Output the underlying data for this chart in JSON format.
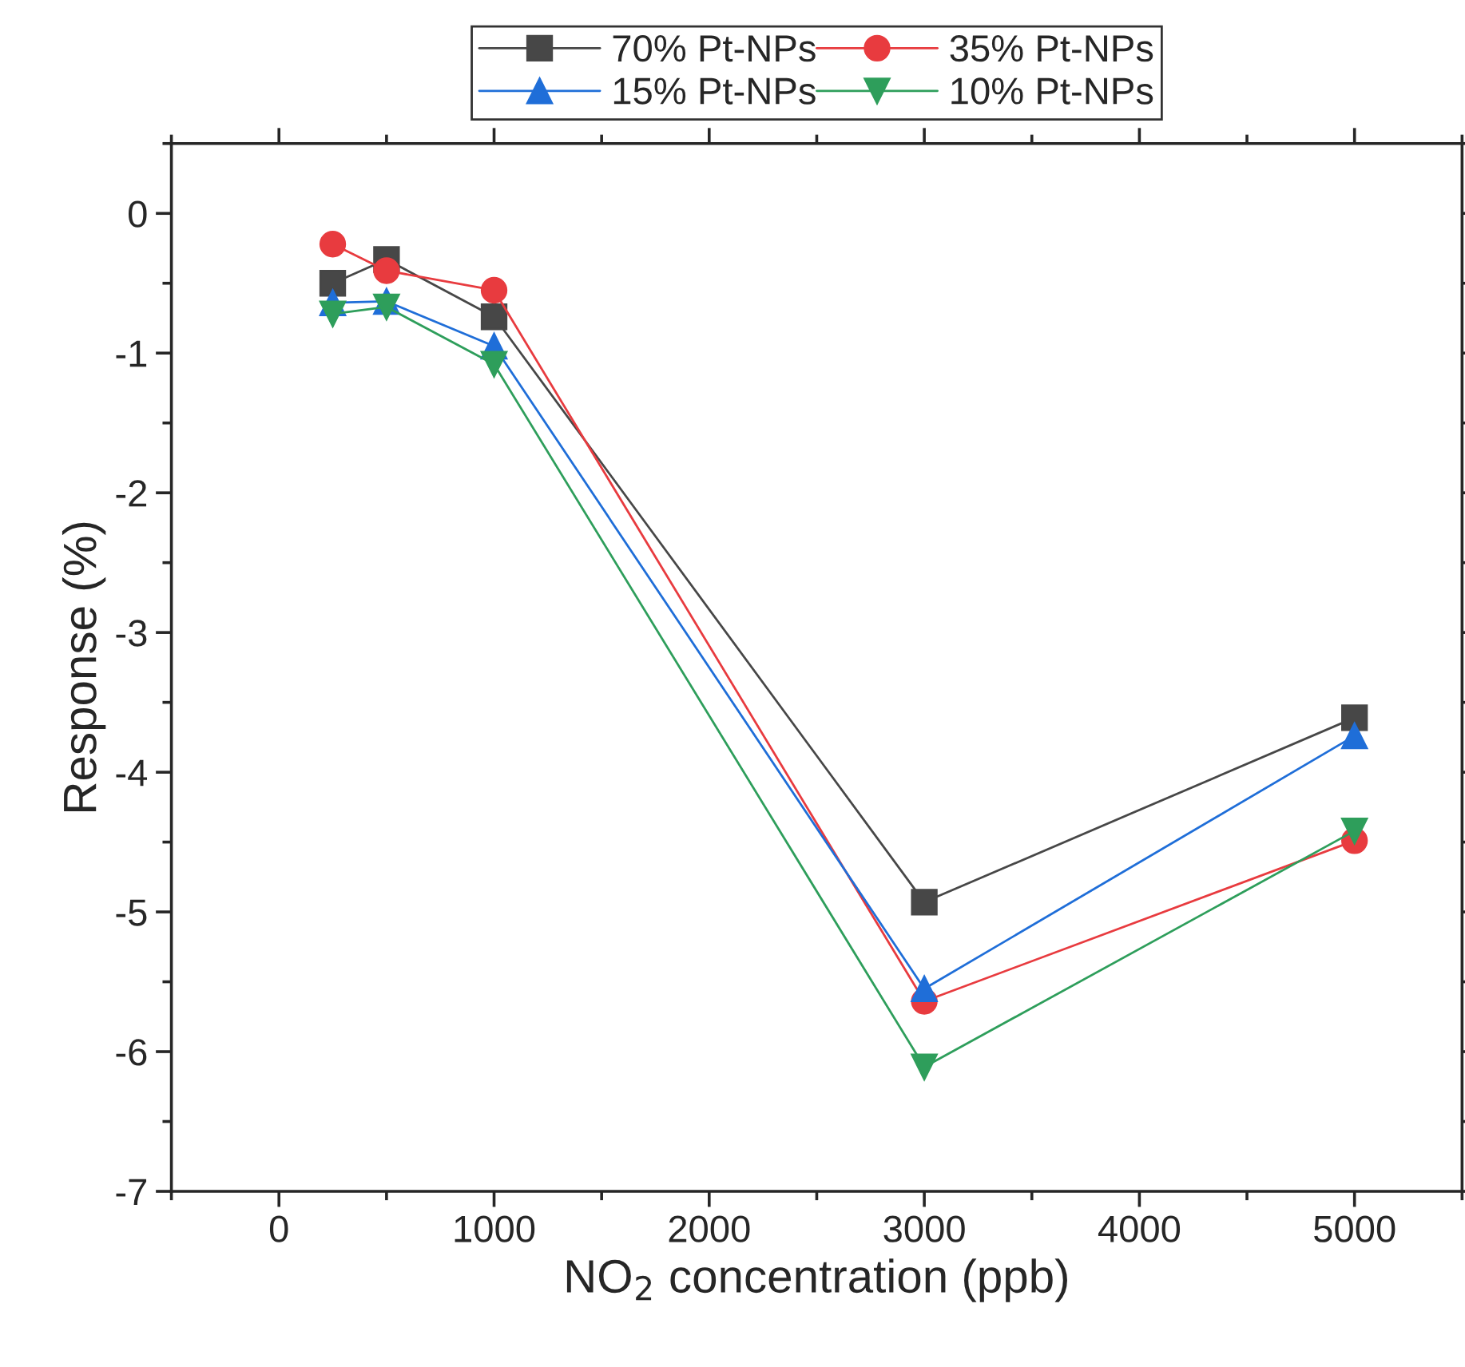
{
  "chart_data": {
    "type": "line",
    "xlabel": "NO$_{2}$ concentration (ppb)",
    "ylabel": "Response (%)",
    "x": [
      250,
      500,
      1000,
      3000,
      5000
    ],
    "series": [
      {
        "name": "70% Pt-NPs",
        "color": "#474747",
        "marker": "square",
        "values": [
          -0.5,
          -0.33,
          -0.74,
          -4.93,
          -3.61
        ]
      },
      {
        "name": "35% Pt-NPs",
        "color": "#e83b3f",
        "marker": "circle",
        "values": [
          -0.22,
          -0.41,
          -0.55,
          -5.64,
          -4.49
        ]
      },
      {
        "name": "15% Pt-NPs",
        "color": "#1f6ed8",
        "marker": "triangle",
        "values": [
          -0.64,
          -0.63,
          -0.95,
          -5.55,
          -3.74
        ]
      },
      {
        "name": "10% Pt-NPs",
        "color": "#2e9e5b",
        "marker": "triangle_down",
        "values": [
          -0.72,
          -0.67,
          -1.08,
          -6.11,
          -4.42
        ]
      }
    ],
    "xlim": [
      -500,
      5500
    ],
    "xticks": [
      0,
      1000,
      2000,
      3000,
      4000,
      5000
    ],
    "ylim": [
      -7,
      0.5
    ],
    "yticks": [
      -7,
      -6,
      -5,
      -4,
      -3,
      -2,
      -1,
      0
    ],
    "grid": false,
    "legend": "top",
    "line_style": "solid"
  }
}
